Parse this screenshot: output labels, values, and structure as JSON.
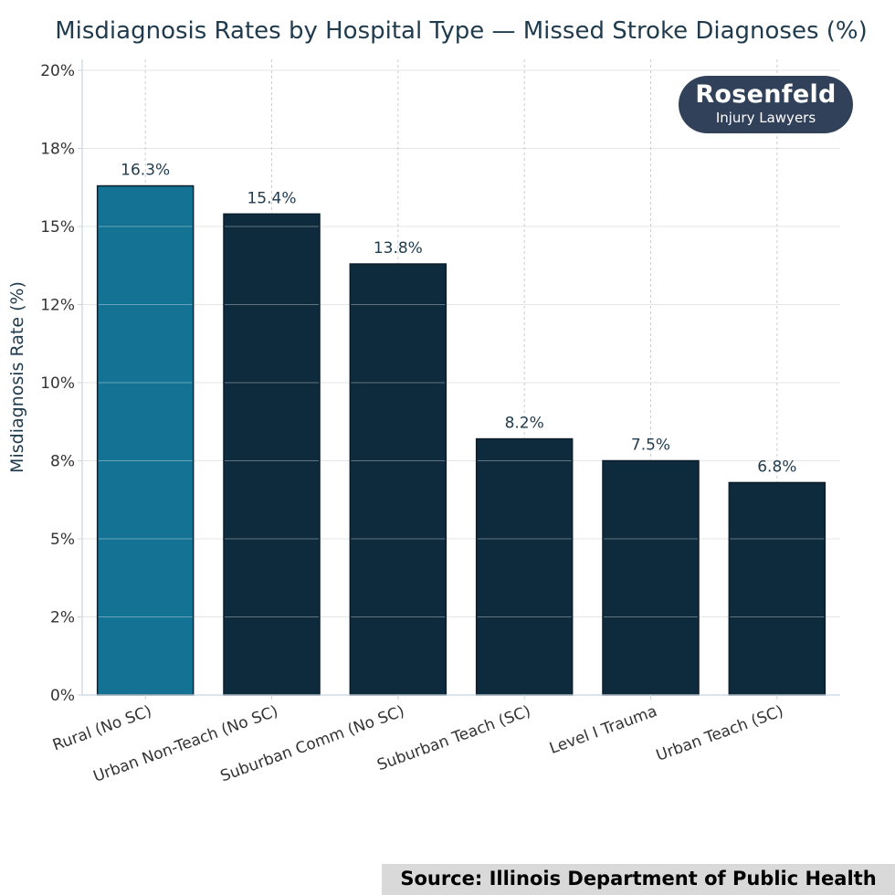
{
  "chart_data": {
    "type": "bar",
    "title": "Misdiagnosis Rates by Hospital Type — Missed Stroke Diagnoses (%)",
    "xlabel": "",
    "ylabel": "Misdiagnosis Rate (%)",
    "categories": [
      "Rural (No SC)",
      "Urban Non-Teach (No SC)",
      "Suburban Comm (No SC)",
      "Suburban Teach (SC)",
      "Level I Trauma",
      "Urban Teach (SC)"
    ],
    "values": [
      16.3,
      15.4,
      13.8,
      8.2,
      7.5,
      6.8
    ],
    "value_labels": [
      "16.3%",
      "15.4%",
      "13.8%",
      "8.2%",
      "7.5%",
      "6.8%"
    ],
    "ylim": [
      0,
      20
    ],
    "y_ticks": [
      0,
      2.5,
      5,
      7.5,
      10,
      12.5,
      15,
      17.5,
      20
    ],
    "y_tick_labels": [
      "0%",
      "2%",
      "5%",
      "8%",
      "10%",
      "12%",
      "15%",
      "18%",
      "20%"
    ],
    "grid": true,
    "colors": {
      "highlight": "#147394",
      "bar": "#0e2a3d",
      "bar_edge": "#0a1e2c",
      "grid": "#e6e6e6",
      "vgrid": "#cccccc",
      "axis": "#c8d5e0"
    },
    "highlight_index": 0
  },
  "logo": {
    "name": "Rosenfeld",
    "tagline": "Injury Lawyers"
  },
  "source": {
    "text": "Source: Illinois Department of Public Health"
  }
}
